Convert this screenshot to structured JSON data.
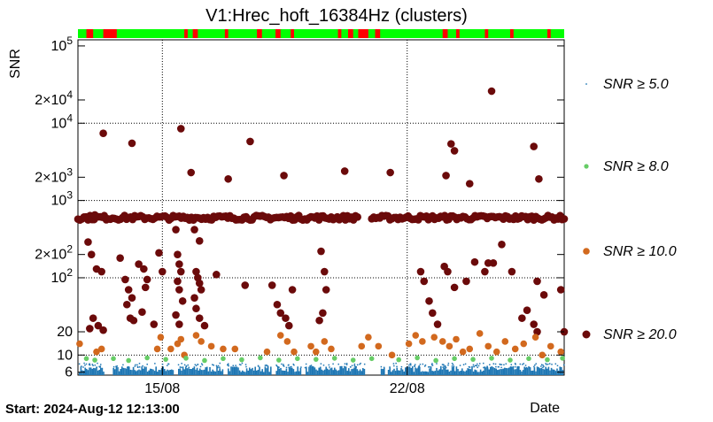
{
  "chart_data": {
    "type": "scatter",
    "title": "V1:Hrec_hoft_16384Hz (clusters)",
    "ylabel": "SNR",
    "xlabel": "Date",
    "yscale": "log",
    "ylim": [
      5.5,
      120000
    ],
    "xlim_days": [
      0,
      28.8
    ],
    "start_label": "Start: 2024-Aug-12 12:13:00",
    "y_ticks": [
      {
        "value": 100000,
        "base": "10",
        "exp": "5"
      },
      {
        "value": 20000,
        "base": "2×10",
        "exp": "4"
      },
      {
        "value": 10000,
        "base": "10",
        "exp": "4"
      },
      {
        "value": 2000,
        "base": "2×10",
        "exp": "3"
      },
      {
        "value": 1000,
        "base": "10",
        "exp": "3"
      },
      {
        "value": 200,
        "base": "2×10",
        "exp": "2"
      },
      {
        "value": 100,
        "base": "10",
        "exp": "2"
      },
      {
        "value": 20,
        "base": "20",
        "exp": ""
      },
      {
        "value": 10,
        "base": "10",
        "exp": ""
      },
      {
        "value": 6,
        "base": "6",
        "exp": ""
      }
    ],
    "x_ticks": [
      {
        "day": 5,
        "label": "15/08"
      },
      {
        "day": 19.5,
        "label": "22/08"
      }
    ],
    "legend": [
      {
        "label": "SNR ≥ 5.0",
        "color": "#1f77b4"
      },
      {
        "label": "SNR ≥ 8.0",
        "color": "#66cc66"
      },
      {
        "label": "SNR ≥ 10.0",
        "color": "#d2691e"
      },
      {
        "label": "SNR ≥ 20.0",
        "color": "#6b0a0a"
      }
    ],
    "status_bar": {
      "ok_color": "#00ff00",
      "bad_color": "#ff0000",
      "bad_segments": [
        [
          0.5,
          0.9
        ],
        [
          1.5,
          2.3
        ],
        [
          6.3,
          6.5
        ],
        [
          6.8,
          7.1
        ],
        [
          8.7,
          8.9
        ],
        [
          10.6,
          10.9
        ],
        [
          11.7,
          12.0
        ],
        [
          12.6,
          12.8
        ],
        [
          15.4,
          15.6
        ],
        [
          16.0,
          16.3
        ],
        [
          16.6,
          17.2
        ],
        [
          17.6,
          17.9
        ],
        [
          21.6,
          21.9
        ],
        [
          22.4,
          22.6
        ],
        [
          24.1,
          24.3
        ],
        [
          25.6,
          25.8
        ],
        [
          27.8,
          28.0
        ]
      ]
    },
    "series": [
      {
        "name": "SNR ≥ 20.0",
        "points": [
          [
            1.0,
            650
          ],
          [
            0.4,
            600
          ],
          [
            1.5,
            7400
          ],
          [
            3.2,
            5500
          ],
          [
            6.1,
            8500
          ],
          [
            6.7,
            2300
          ],
          [
            8.9,
            1900
          ],
          [
            10.2,
            5800
          ],
          [
            12.2,
            2100
          ],
          [
            15.8,
            2400
          ],
          [
            18.5,
            2300
          ],
          [
            21.8,
            2100
          ],
          [
            22.1,
            5400
          ],
          [
            22.3,
            4400
          ],
          [
            23.2,
            1650
          ],
          [
            24.5,
            26000
          ],
          [
            27.0,
            5000
          ],
          [
            27.3,
            1900
          ],
          [
            0.6,
            290
          ],
          [
            0.8,
            200
          ],
          [
            1.1,
            130
          ],
          [
            1.4,
            120
          ],
          [
            0.9,
            30
          ],
          [
            1.2,
            24
          ],
          [
            1.5,
            21
          ],
          [
            0.7,
            22
          ],
          [
            2.5,
            180
          ],
          [
            2.8,
            95
          ],
          [
            3.0,
            70
          ],
          [
            3.2,
            55
          ],
          [
            2.9,
            45
          ],
          [
            3.1,
            30
          ],
          [
            3.3,
            28
          ],
          [
            3.6,
            150
          ],
          [
            3.9,
            130
          ],
          [
            4.1,
            95
          ],
          [
            4.0,
            75
          ],
          [
            3.8,
            36
          ],
          [
            4.5,
            25
          ],
          [
            4.8,
            210
          ],
          [
            5.0,
            120
          ],
          [
            5.8,
            420
          ],
          [
            5.9,
            200
          ],
          [
            6.0,
            150
          ],
          [
            6.1,
            120
          ],
          [
            5.9,
            90
          ],
          [
            6.0,
            70
          ],
          [
            6.2,
            50
          ],
          [
            5.8,
            33
          ],
          [
            6.0,
            25
          ],
          [
            6.9,
            420
          ],
          [
            7.2,
            300
          ],
          [
            7.0,
            120
          ],
          [
            7.1,
            100
          ],
          [
            7.2,
            85
          ],
          [
            7.3,
            70
          ],
          [
            6.9,
            55
          ],
          [
            7.0,
            40
          ],
          [
            7.2,
            30
          ],
          [
            7.5,
            24
          ],
          [
            8.2,
            110
          ],
          [
            9.9,
            80
          ],
          [
            11.5,
            80
          ],
          [
            11.8,
            45
          ],
          [
            12.0,
            35
          ],
          [
            12.3,
            30
          ],
          [
            12.7,
            70
          ],
          [
            12.5,
            24
          ],
          [
            14.4,
            220
          ],
          [
            14.6,
            120
          ],
          [
            14.7,
            70
          ],
          [
            14.5,
            35
          ],
          [
            14.3,
            28
          ],
          [
            20.3,
            120
          ],
          [
            20.5,
            90
          ],
          [
            20.8,
            50
          ],
          [
            21.0,
            35
          ],
          [
            21.3,
            25
          ],
          [
            21.7,
            140
          ],
          [
            21.9,
            120
          ],
          [
            22.3,
            75
          ],
          [
            23.0,
            90
          ],
          [
            23.5,
            160
          ],
          [
            24.1,
            120
          ],
          [
            24.3,
            155
          ],
          [
            24.6,
            155
          ],
          [
            25.1,
            270
          ],
          [
            25.7,
            120
          ],
          [
            26.3,
            30
          ],
          [
            26.6,
            38
          ],
          [
            27.2,
            90
          ],
          [
            27.6,
            60
          ],
          [
            27.0,
            25
          ],
          [
            27.2,
            20
          ],
          [
            28.6,
            70
          ],
          [
            28.8,
            20
          ],
          [
            28.9,
            620
          ]
        ]
      },
      {
        "name": "SNR ≥ 10.0",
        "points": [
          [
            0.1,
            14
          ],
          [
            1.1,
            11
          ],
          [
            1.4,
            12
          ],
          [
            4.7,
            12
          ],
          [
            4.9,
            17
          ],
          [
            5.5,
            12
          ],
          [
            5.9,
            14
          ],
          [
            6.1,
            16
          ],
          [
            6.3,
            10
          ],
          [
            7.0,
            18
          ],
          [
            7.3,
            15
          ],
          [
            7.9,
            13
          ],
          [
            8.6,
            12
          ],
          [
            9.3,
            12
          ],
          [
            11.2,
            11
          ],
          [
            12.0,
            18
          ],
          [
            12.4,
            15
          ],
          [
            12.8,
            11
          ],
          [
            13.8,
            13
          ],
          [
            14.1,
            11
          ],
          [
            14.6,
            15
          ],
          [
            15.0,
            12
          ],
          [
            16.8,
            13
          ],
          [
            17.2,
            17
          ],
          [
            17.8,
            13
          ],
          [
            18.6,
            10
          ],
          [
            19.6,
            14
          ],
          [
            20.0,
            18
          ],
          [
            20.4,
            15
          ],
          [
            21.1,
            17
          ],
          [
            21.6,
            15
          ],
          [
            22.0,
            13
          ],
          [
            22.4,
            16
          ],
          [
            22.8,
            11
          ],
          [
            23.2,
            12
          ],
          [
            23.8,
            19
          ],
          [
            24.3,
            13
          ],
          [
            24.8,
            11
          ],
          [
            25.3,
            15
          ],
          [
            25.9,
            12
          ],
          [
            26.4,
            14
          ],
          [
            27.1,
            17
          ],
          [
            27.5,
            10
          ],
          [
            28.0,
            13
          ],
          [
            28.6,
            11
          ]
        ]
      },
      {
        "name": "SNR ≥ 8.0",
        "points": [
          [
            0.5,
            9
          ],
          [
            1.0,
            8.6
          ],
          [
            2.1,
            9
          ],
          [
            3.0,
            8.5
          ],
          [
            4.1,
            9.2
          ],
          [
            5.2,
            8.8
          ],
          [
            6.4,
            9.1
          ],
          [
            7.5,
            8.5
          ],
          [
            8.6,
            9.0
          ],
          [
            9.7,
            8.7
          ],
          [
            10.8,
            9.2
          ],
          [
            11.9,
            8.6
          ],
          [
            13.0,
            9.0
          ],
          [
            14.1,
            8.8
          ],
          [
            15.2,
            9.1
          ],
          [
            16.3,
            8.6
          ],
          [
            17.4,
            9.0
          ],
          [
            19.0,
            8.7
          ],
          [
            20.1,
            9.2
          ],
          [
            21.2,
            8.5
          ],
          [
            22.3,
            9.0
          ],
          [
            23.4,
            8.8
          ],
          [
            24.5,
            9.1
          ],
          [
            25.6,
            8.6
          ],
          [
            26.7,
            9.0
          ],
          [
            27.8,
            8.7
          ],
          [
            28.7,
            9.1
          ]
        ]
      }
    ]
  }
}
